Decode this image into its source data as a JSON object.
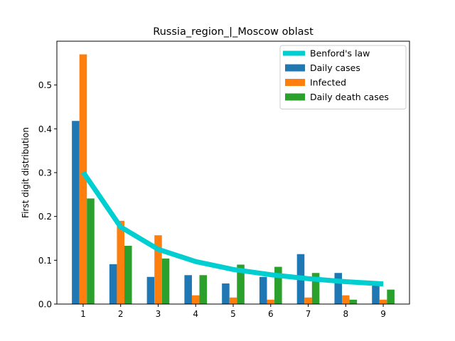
{
  "chart_data": {
    "type": "bar",
    "title": "Russia_region_|_Moscow oblast",
    "xlabel": "",
    "ylabel": "First digit distribution",
    "categories": [
      "1",
      "2",
      "3",
      "4",
      "5",
      "6",
      "7",
      "8",
      "9"
    ],
    "x": [
      1,
      2,
      3,
      4,
      5,
      6,
      7,
      8,
      9
    ],
    "xlim": [
      0.3,
      9.7
    ],
    "ylim": [
      0.0,
      0.6
    ],
    "yticks": [
      "0.0",
      "0.1",
      "0.2",
      "0.3",
      "0.4",
      "0.5"
    ],
    "grid": false,
    "legend_position": "top-right",
    "series": [
      {
        "name": "Daily cases",
        "kind": "bar",
        "color": "#1f77b4",
        "values": [
          0.418,
          0.091,
          0.062,
          0.066,
          0.047,
          0.062,
          0.114,
          0.071,
          0.047
        ]
      },
      {
        "name": "Infected",
        "kind": "bar",
        "color": "#ff7f0e",
        "values": [
          0.57,
          0.19,
          0.157,
          0.02,
          0.015,
          0.01,
          0.015,
          0.02,
          0.01
        ]
      },
      {
        "name": "Daily death cases",
        "kind": "bar",
        "color": "#2ca02c",
        "values": [
          0.241,
          0.133,
          0.104,
          0.066,
          0.09,
          0.085,
          0.071,
          0.01,
          0.033
        ]
      },
      {
        "name": "Benford's law",
        "kind": "line",
        "color": "#00ced1",
        "values": [
          0.301,
          0.176,
          0.125,
          0.097,
          0.079,
          0.067,
          0.058,
          0.051,
          0.046
        ]
      }
    ],
    "legend_order": [
      "Benford's law",
      "Daily cases",
      "Infected",
      "Daily death cases"
    ]
  }
}
